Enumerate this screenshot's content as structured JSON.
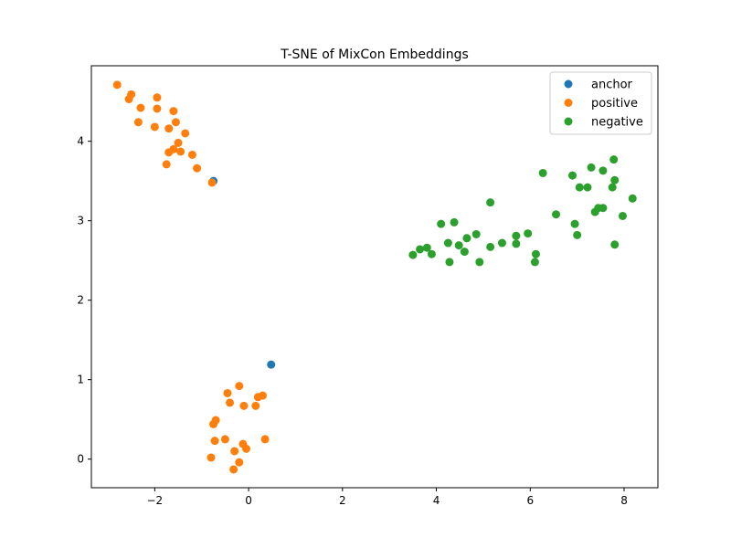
{
  "chart_data": {
    "type": "scatter",
    "title": "T-SNE of MixCon Embeddings",
    "xlabel": "",
    "ylabel": "",
    "xlim": [
      -3.35,
      8.72
    ],
    "ylim": [
      -0.36,
      4.95
    ],
    "xticks": [
      -2,
      0,
      2,
      4,
      6,
      8
    ],
    "yticks": [
      0,
      1,
      2,
      3,
      4
    ],
    "grid": false,
    "legend_position": "top-right",
    "series": [
      {
        "name": "anchor",
        "color": "#1f77b4",
        "points": [
          [
            -0.75,
            3.5
          ],
          [
            0.48,
            1.19
          ]
        ]
      },
      {
        "name": "positive",
        "color": "#ff7f0e",
        "points": [
          [
            -2.8,
            4.71
          ],
          [
            -2.5,
            4.59
          ],
          [
            -2.55,
            4.53
          ],
          [
            -1.95,
            4.55
          ],
          [
            -2.3,
            4.42
          ],
          [
            -1.95,
            4.41
          ],
          [
            -1.6,
            4.38
          ],
          [
            -2.35,
            4.24
          ],
          [
            -1.55,
            4.24
          ],
          [
            -2.0,
            4.18
          ],
          [
            -1.7,
            4.16
          ],
          [
            -1.35,
            4.1
          ],
          [
            -1.5,
            3.98
          ],
          [
            -1.6,
            3.9
          ],
          [
            -1.7,
            3.86
          ],
          [
            -1.45,
            3.87
          ],
          [
            -1.2,
            3.83
          ],
          [
            -1.75,
            3.71
          ],
          [
            -1.1,
            3.66
          ],
          [
            -0.78,
            3.48
          ],
          [
            -0.2,
            0.92
          ],
          [
            -0.45,
            0.83
          ],
          [
            0.3,
            0.8
          ],
          [
            0.2,
            0.78
          ],
          [
            0.15,
            0.67
          ],
          [
            -0.1,
            0.67
          ],
          [
            -0.4,
            0.71
          ],
          [
            -0.7,
            0.49
          ],
          [
            -0.75,
            0.44
          ],
          [
            0.35,
            0.25
          ],
          [
            -0.72,
            0.23
          ],
          [
            -0.5,
            0.25
          ],
          [
            -0.12,
            0.19
          ],
          [
            -0.05,
            0.13
          ],
          [
            -0.3,
            0.1
          ],
          [
            -0.8,
            0.02
          ],
          [
            -0.2,
            -0.04
          ],
          [
            -0.32,
            -0.13
          ]
        ]
      },
      {
        "name": "negative",
        "color": "#2ca02c",
        "points": [
          [
            7.78,
            3.77
          ],
          [
            7.3,
            3.67
          ],
          [
            7.55,
            3.63
          ],
          [
            6.27,
            3.6
          ],
          [
            6.9,
            3.57
          ],
          [
            7.8,
            3.51
          ],
          [
            7.05,
            3.42
          ],
          [
            7.22,
            3.42
          ],
          [
            7.75,
            3.42
          ],
          [
            8.18,
            3.28
          ],
          [
            5.15,
            3.23
          ],
          [
            7.45,
            3.16
          ],
          [
            7.55,
            3.16
          ],
          [
            7.38,
            3.11
          ],
          [
            6.55,
            3.08
          ],
          [
            7.97,
            3.06
          ],
          [
            4.38,
            2.98
          ],
          [
            4.1,
            2.96
          ],
          [
            6.95,
            2.96
          ],
          [
            5.95,
            2.84
          ],
          [
            4.85,
            2.83
          ],
          [
            7.0,
            2.82
          ],
          [
            5.7,
            2.81
          ],
          [
            4.65,
            2.78
          ],
          [
            5.4,
            2.72
          ],
          [
            4.25,
            2.72
          ],
          [
            5.7,
            2.71
          ],
          [
            7.8,
            2.7
          ],
          [
            4.48,
            2.69
          ],
          [
            5.15,
            2.67
          ],
          [
            3.8,
            2.66
          ],
          [
            3.65,
            2.64
          ],
          [
            4.6,
            2.61
          ],
          [
            6.12,
            2.58
          ],
          [
            3.9,
            2.58
          ],
          [
            3.5,
            2.57
          ],
          [
            4.28,
            2.48
          ],
          [
            4.92,
            2.48
          ],
          [
            6.1,
            2.48
          ]
        ]
      }
    ]
  }
}
